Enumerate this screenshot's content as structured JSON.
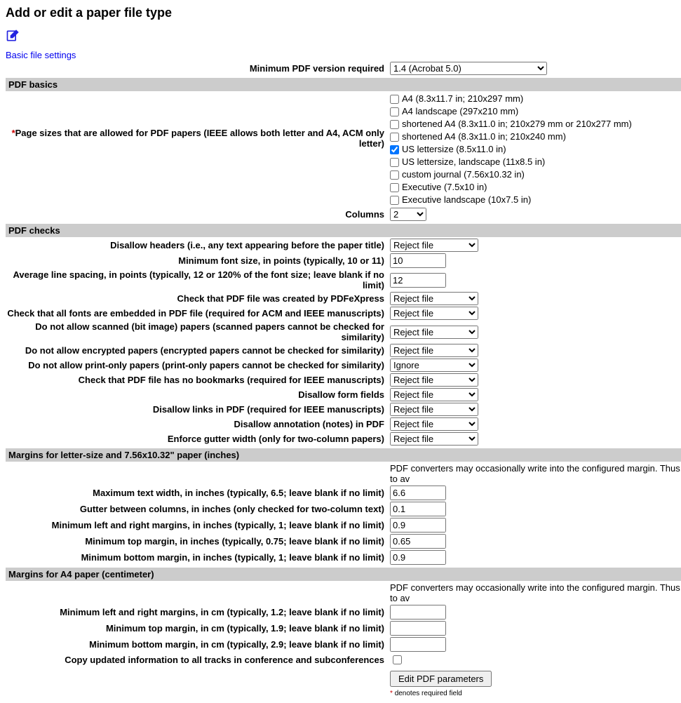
{
  "title": "Add or edit a paper file type",
  "basic_link": "Basic file settings",
  "pdf_note": "PDF converters may occasionally write into the configured margin. Thus, to av",
  "footnote": "denotes required field",
  "submit_label": "Edit PDF parameters",
  "sections": {
    "basics": "PDF basics",
    "checks": "PDF checks",
    "margins_letter": "Margins for letter-size and 7.56x10.32\" paper (inches)",
    "margins_a4": "Margins for A4 paper (centimeter)"
  },
  "labels": {
    "min_pdf_version": "Minimum PDF version required",
    "page_sizes": "Page sizes that are allowed for PDF papers (IEEE allows both letter and A4, ACM only letter)",
    "columns": "Columns",
    "disallow_headers": "Disallow headers (i.e., any text appearing before the paper title)",
    "min_font": "Minimum font size, in points (typically, 10 or 11)",
    "line_spacing": "Average line spacing, in points (typically, 12 or 120% of the font size; leave blank if no limit)",
    "pdfexpress": "Check that PDF file was created by PDFeXpress",
    "embedded_fonts": "Check that all fonts are embedded in PDF file (required for ACM and IEEE manuscripts)",
    "no_scanned": "Do not allow scanned (bit image) papers (scanned papers cannot be checked for similarity)",
    "no_encrypted": "Do not allow encrypted papers (encrypted papers cannot be checked for similarity)",
    "no_printonly": "Do not allow print-only papers (print-only papers cannot be checked for similarity)",
    "no_bookmarks": "Check that PDF file has no bookmarks (required for IEEE manuscripts)",
    "disallow_forms": "Disallow form fields",
    "disallow_links": "Disallow links in PDF (required for IEEE manuscripts)",
    "disallow_annot": "Disallow annotation (notes) in PDF",
    "gutter_width": "Enforce gutter width (only for two-column papers)",
    "max_text_width": "Maximum text width, in inches (typically, 6.5; leave blank if no limit)",
    "gutter_cols": "Gutter between columns, in inches (only checked for two-column text)",
    "min_lr_in": "Minimum left and right margins, in inches (typically, 1; leave blank if no limit)",
    "min_top_in": "Minimum top margin, in inches (typically, 0.75; leave blank if no limit)",
    "min_bot_in": "Minimum bottom margin, in inches (typically, 1; leave blank if no limit)",
    "min_lr_cm": "Minimum left and right margins, in cm (typically, 1.2; leave blank if no limit)",
    "min_top_cm": "Minimum top margin, in cm (typically, 1.9; leave blank if no limit)",
    "min_bot_cm": "Minimum bottom margin, in cm (typically, 2.9; leave blank if no limit)",
    "copy_tracks": "Copy updated information to all tracks in conference and subconferences"
  },
  "values": {
    "min_pdf_version": "1.4 (Acrobat 5.0)",
    "columns": "2",
    "reject": "Reject file",
    "ignore": "Ignore",
    "min_font": "10",
    "line_spacing": "12",
    "max_text_width": "6.6",
    "gutter_cols": "0.1",
    "min_lr_in": "0.9",
    "min_top_in": "0.65",
    "min_bot_in": "0.9",
    "min_lr_cm": "",
    "min_top_cm": "",
    "min_bot_cm": ""
  },
  "page_sizes": [
    {
      "label": "A4 (8.3x11.7 in; 210x297 mm)",
      "checked": false
    },
    {
      "label": "A4 landscape (297x210 mm)",
      "checked": false
    },
    {
      "label": "shortened A4 (8.3x11.0 in; 210x279 mm or 210x277 mm)",
      "checked": false
    },
    {
      "label": "shortened A4 (8.3x11.0 in; 210x240 mm)",
      "checked": false
    },
    {
      "label": "US lettersize (8.5x11.0 in)",
      "checked": true
    },
    {
      "label": "US lettersize, landscape (11x8.5 in)",
      "checked": false
    },
    {
      "label": "custom journal (7.56x10.32 in)",
      "checked": false
    },
    {
      "label": "Executive (7.5x10 in)",
      "checked": false
    },
    {
      "label": "Executive landscape (10x7.5 in)",
      "checked": false
    }
  ]
}
